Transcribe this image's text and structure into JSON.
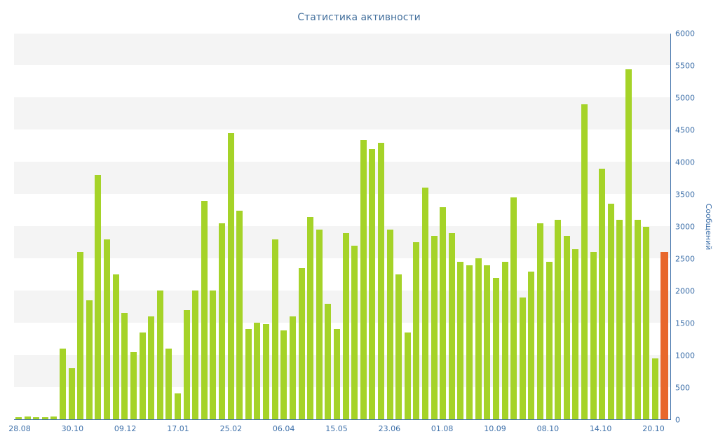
{
  "title": "Статистика активности",
  "colors": {
    "bar": "#a5d328",
    "current_bar": "#e8672b",
    "axis_text": "#3b6ea8",
    "title_text": "#44709d",
    "stripe": "#f4f4f4",
    "background": "#ffffff"
  },
  "chart_data": {
    "type": "bar",
    "title": "Статистика активности",
    "xlabel": "",
    "ylabel": "Сообщений",
    "ylim": [
      0,
      6000
    ],
    "y_ticks": [
      0,
      500,
      1000,
      1500,
      2000,
      2500,
      3000,
      3500,
      4000,
      4500,
      5000,
      5500,
      6000
    ],
    "x_tick_labels": [
      "28.08",
      "30.10",
      "09.12",
      "17.01",
      "25.02",
      "06.04",
      "15.05",
      "23.06",
      "01.08",
      "10.09",
      "08.10",
      "14.10",
      "20.10"
    ],
    "grid": "horizontal-stripes",
    "legend": "none",
    "y_axis_position": "right",
    "highlight_last_bar": true,
    "values": [
      30,
      40,
      30,
      30,
      40,
      1100,
      800,
      2600,
      1850,
      3800,
      2800,
      2250,
      1650,
      1050,
      1350,
      1600,
      2000,
      1100,
      400,
      1700,
      2000,
      3400,
      2000,
      3050,
      4450,
      3250,
      1400,
      1500,
      1480,
      2800,
      1380,
      1600,
      2350,
      3150,
      2950,
      1800,
      1400,
      2900,
      2700,
      4350,
      4200,
      4300,
      2950,
      2250,
      1350,
      2750,
      3600,
      2850,
      3300,
      2900,
      2450,
      2400,
      2500,
      2400,
      2200,
      2450,
      3450,
      1900,
      2300,
      3050,
      2450,
      3100,
      2850,
      2650,
      4900,
      2600,
      3900,
      3350,
      3100,
      5450,
      3100,
      3000,
      950,
      2600
    ]
  }
}
